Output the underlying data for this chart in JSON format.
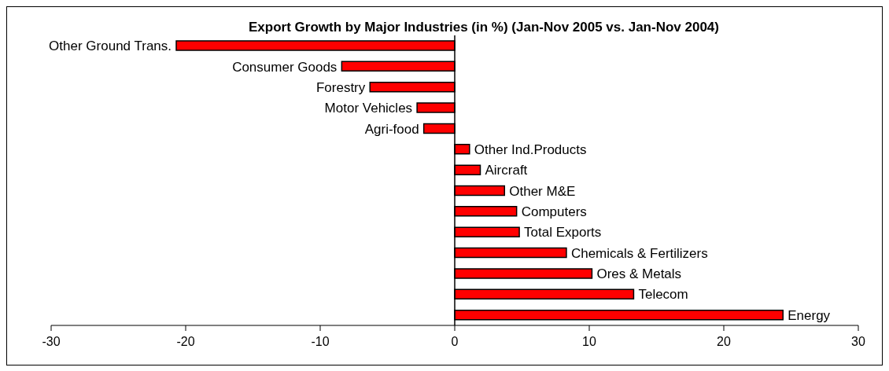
{
  "chart_data": {
    "type": "bar",
    "orientation": "horizontal",
    "title": "Export Growth by Major Industries (in %) (Jan-Nov 2005 vs. Jan-Nov 2004)",
    "categories": [
      "Other Ground Trans.",
      "Consumer Goods",
      "Forestry",
      "Motor Vehicles",
      "Agri-food",
      "Other Ind.Products",
      "Aircraft",
      "Other M&E",
      "Computers",
      "Total Exports",
      "Chemicals & Fertilizers",
      "Ores & Metals",
      "Telecom",
      "Energy"
    ],
    "values": [
      -20.7,
      -8.4,
      -6.3,
      -2.8,
      -2.3,
      1.1,
      1.9,
      3.7,
      4.6,
      4.8,
      8.3,
      10.2,
      13.3,
      24.4
    ],
    "color": "#ff0000",
    "xlim": [
      -30,
      30
    ],
    "xticks": [
      -30,
      -20,
      -10,
      0,
      10,
      20,
      30
    ],
    "grid": false
  }
}
